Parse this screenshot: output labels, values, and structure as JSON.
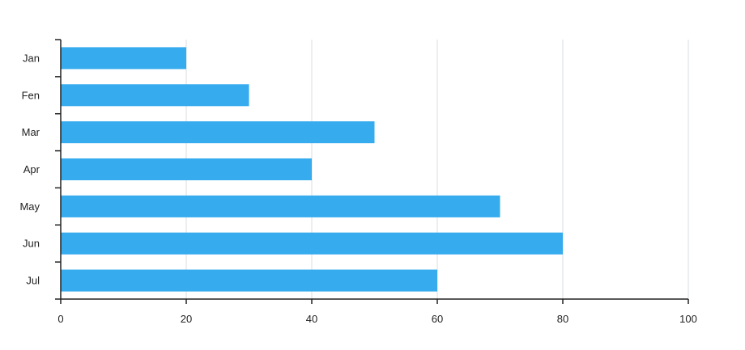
{
  "chart_data": {
    "type": "bar",
    "orientation": "horizontal",
    "categories": [
      "Jan",
      "Fen",
      "Mar",
      "Apr",
      "May",
      "Jun",
      "Jul"
    ],
    "values": [
      20,
      30,
      50,
      40,
      70,
      80,
      60
    ],
    "xlim": [
      0,
      100
    ],
    "xticks": [
      0,
      20,
      40,
      60,
      80,
      100
    ],
    "title": "",
    "xlabel": "",
    "ylabel": "",
    "grid": "vertical",
    "legend": "none",
    "bar_color": "#36abee",
    "grid_color": "#d9dee3",
    "axis_color": "#222222"
  }
}
